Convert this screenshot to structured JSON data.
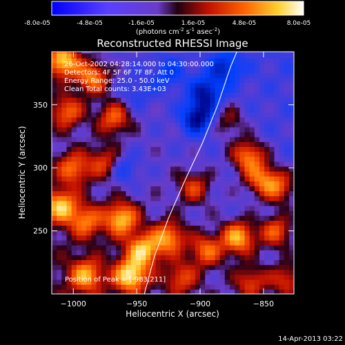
{
  "colorbar": {
    "ticks": [
      "-8.0e-05",
      "-4.8e-05",
      "-1.6e-05",
      "1.6e-05",
      "4.8e-05",
      "8.0e-05"
    ],
    "units_main": "(photons cm",
    "units_exp1": "-2",
    "units_mid": " s",
    "units_exp2": "-1",
    "units_end": " asec",
    "units_exp3": "-2",
    "units_close": ")"
  },
  "info": {
    "time": "26-Oct-2002 04:28:14.000 to 04:30:00.000",
    "detectors": "Detectors: 4F 5F 6F 7F 8F, Att 0",
    "energy": "Energy Range: 25.0 - 50.0 keV",
    "clean": "Clean    Total counts: 3.43E+03",
    "peak": "Position of Peak = [-983,211]"
  },
  "footer": {
    "date": "14-Apr-2013 03:22"
  },
  "chart_data": {
    "type": "heatmap",
    "title": "Reconstructed RHESSI Image",
    "xlabel": "Heliocentric X (arcsec)",
    "ylabel": "Heliocentric Y (arcsec)",
    "xlim": [
      -1017,
      -826
    ],
    "ylim": [
      200,
      392
    ],
    "xticks": [
      {
        "value": -1000,
        "label": "−1000"
      },
      {
        "value": -950,
        "label": "−950"
      },
      {
        "value": -900,
        "label": "−900"
      },
      {
        "value": -850,
        "label": "−850"
      }
    ],
    "yticks": [
      {
        "value": 250,
        "label": "250"
      },
      {
        "value": 300,
        "label": "300"
      },
      {
        "value": 350,
        "label": "350"
      }
    ],
    "value_range": [
      -8e-05,
      8e-05
    ],
    "colormap": [
      "#000080",
      "#0040ff",
      "#6a3cc8",
      "#2a0018",
      "#c01000",
      "#ff6000",
      "#ffd030",
      "#ffffff"
    ],
    "limb_curve": [
      [
        -944,
        200
      ],
      [
        -936,
        230
      ],
      [
        -925,
        260
      ],
      [
        -912,
        290
      ],
      [
        -898,
        320
      ],
      [
        -886,
        350
      ],
      [
        -876,
        380
      ],
      [
        -871,
        392
      ]
    ],
    "blobs": [
      {
        "x": -1008,
        "y": 385,
        "w": 8e-05
      },
      {
        "x": -985,
        "y": 372,
        "w": 6e-05
      },
      {
        "x": -968,
        "y": 340,
        "w": 5e-05
      },
      {
        "x": -1005,
        "y": 345,
        "w": 5e-05
      },
      {
        "x": -975,
        "y": 305,
        "w": 4e-05
      },
      {
        "x": -1000,
        "y": 300,
        "w": 5e-05
      },
      {
        "x": -1010,
        "y": 270,
        "w": 7e-05
      },
      {
        "x": -990,
        "y": 258,
        "w": 5e-05
      },
      {
        "x": -962,
        "y": 260,
        "w": 7e-05
      },
      {
        "x": -945,
        "y": 235,
        "w": 7e-05
      },
      {
        "x": -955,
        "y": 215,
        "w": 8e-05
      },
      {
        "x": -925,
        "y": 245,
        "w": 6e-05
      },
      {
        "x": -990,
        "y": 215,
        "w": 6e-05
      },
      {
        "x": -905,
        "y": 285,
        "w": 4e-05
      },
      {
        "x": -895,
        "y": 235,
        "w": 5e-05
      },
      {
        "x": -870,
        "y": 245,
        "w": 7e-05
      },
      {
        "x": -840,
        "y": 250,
        "w": 5e-05
      },
      {
        "x": -862,
        "y": 310,
        "w": 6e-05
      },
      {
        "x": -852,
        "y": 292,
        "w": 5e-05
      },
      {
        "x": -838,
        "y": 285,
        "w": 5e-05
      },
      {
        "x": -860,
        "y": 210,
        "w": 4e-05
      },
      {
        "x": -832,
        "y": 212,
        "w": 4e-05
      },
      {
        "x": -878,
        "y": 338,
        "w": 3e-05
      },
      {
        "x": -915,
        "y": 213,
        "w": 4e-05
      },
      {
        "x": -902,
        "y": 340,
        "w": -6e-05
      },
      {
        "x": -895,
        "y": 360,
        "w": -5e-05
      },
      {
        "x": -880,
        "y": 380,
        "w": -4e-05
      },
      {
        "x": -925,
        "y": 375,
        "w": -3e-05
      },
      {
        "x": -960,
        "y": 300,
        "w": -3e-05
      },
      {
        "x": -950,
        "y": 360,
        "w": -2e-05
      }
    ]
  }
}
